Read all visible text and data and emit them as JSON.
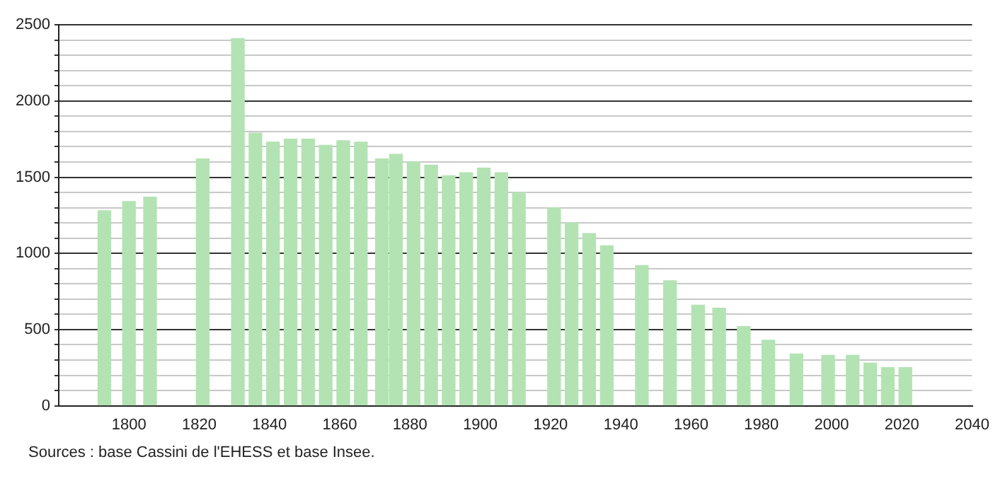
{
  "chart_data": {
    "type": "bar",
    "x": [
      1793,
      1800,
      1806,
      1821,
      1831,
      1836,
      1841,
      1846,
      1851,
      1856,
      1861,
      1866,
      1872,
      1876,
      1881,
      1886,
      1891,
      1896,
      1901,
      1906,
      1911,
      1921,
      1926,
      1931,
      1936,
      1946,
      1954,
      1962,
      1968,
      1975,
      1982,
      1990,
      1999,
      2006,
      2011,
      2016,
      2021
    ],
    "series": [
      {
        "color": "#b3e3b3",
        "values": [
          1280,
          1340,
          1370,
          1620,
          2410,
          1790,
          1730,
          1750,
          1750,
          1710,
          1740,
          1730,
          1620,
          1650,
          1600,
          1580,
          1510,
          1530,
          1560,
          1530,
          1400,
          1300,
          1200,
          1130,
          1050,
          920,
          820,
          660,
          640,
          520,
          430,
          340,
          330,
          330,
          280,
          250,
          250
        ]
      }
    ],
    "xlim": [
      1780,
      2040
    ],
    "xticks": [
      1800,
      1820,
      1840,
      1860,
      1880,
      1900,
      1920,
      1940,
      1960,
      1980,
      2000,
      2020,
      2040
    ],
    "ylim": [
      0,
      2500
    ],
    "yticks": [
      0,
      {
        "value": 100,
        "label": null
      },
      {
        "value": 200,
        "label": null
      },
      {
        "value": 300,
        "label": null
      },
      {
        "value": 400,
        "label": null
      },
      500,
      {
        "value": 600,
        "label": null
      },
      {
        "value": 700,
        "label": null
      },
      {
        "value": 800,
        "label": null
      },
      {
        "value": 900,
        "label": null
      },
      1000,
      {
        "value": 1100,
        "label": null
      },
      {
        "value": 1200,
        "label": null
      },
      {
        "value": 1300,
        "label": null
      },
      {
        "value": 1400,
        "label": null
      },
      1500,
      {
        "value": 1600,
        "label": null
      },
      {
        "value": 1700,
        "label": null
      },
      {
        "value": 1800,
        "label": null
      },
      {
        "value": 1900,
        "label": null
      },
      2000,
      {
        "value": 2100,
        "label": null
      },
      {
        "value": 2200,
        "label": null
      },
      {
        "value": 2300,
        "label": null
      },
      {
        "value": 2400,
        "label": null
      },
      2500
    ],
    "grid": "y",
    "legend": false,
    "annotations": [
      "Sources : base Cassini de l'EHESS et base Insee."
    ]
  }
}
